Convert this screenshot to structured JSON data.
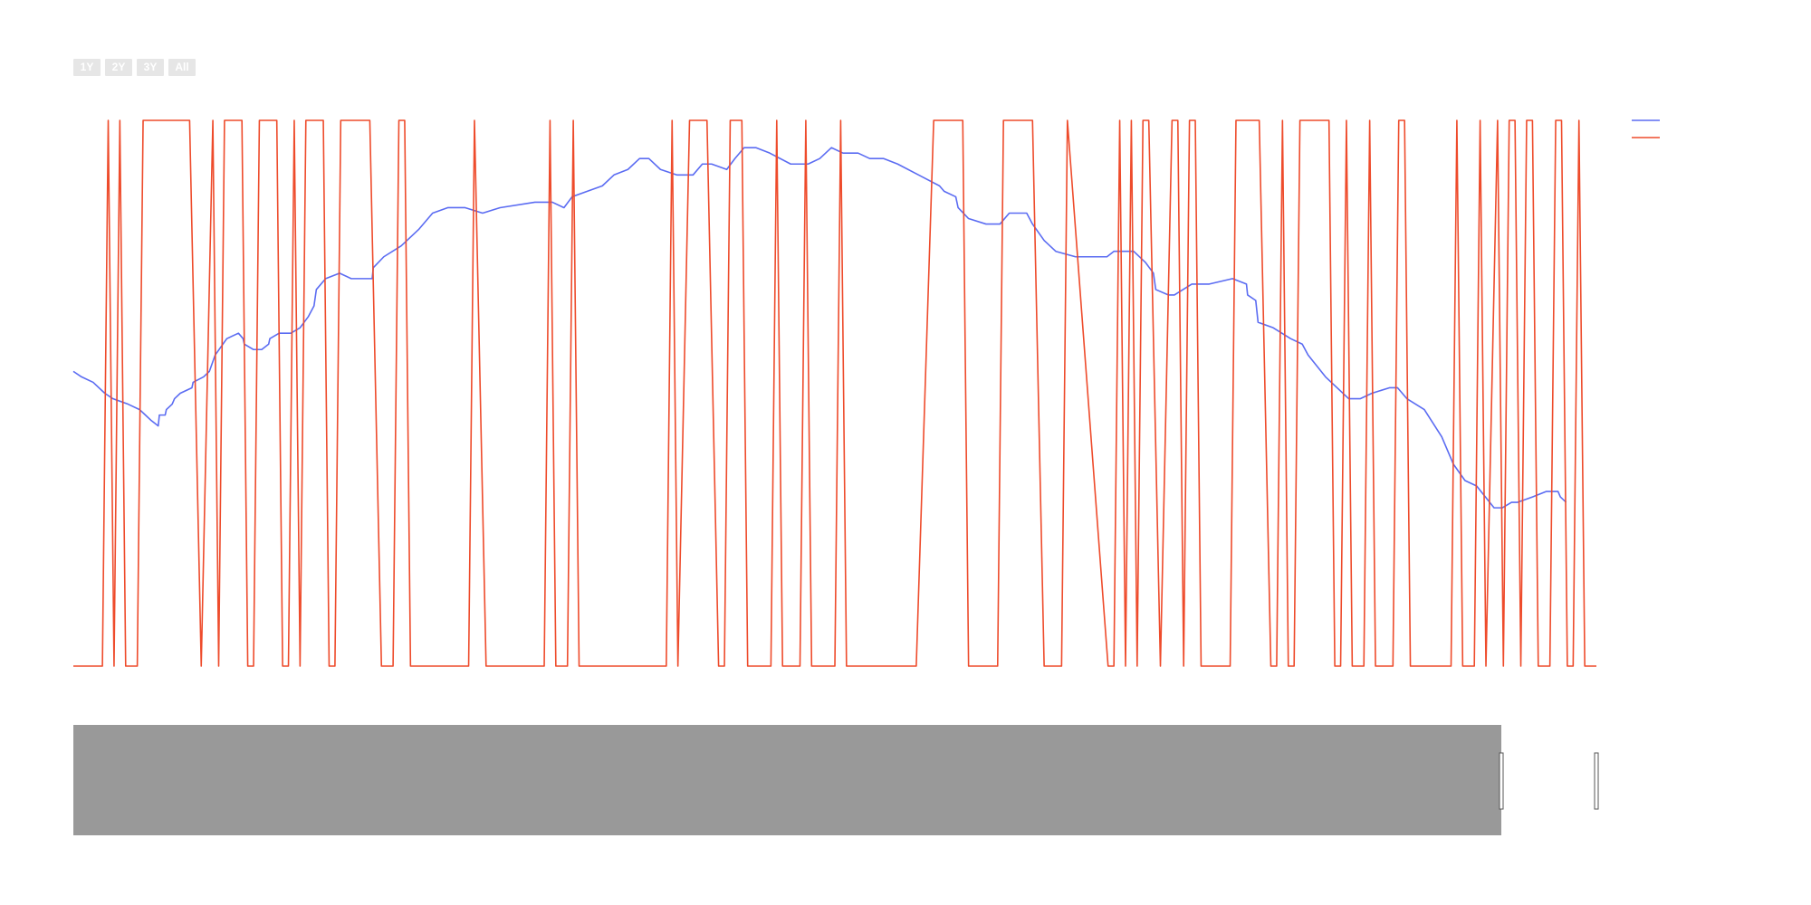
{
  "range_buttons": [
    "1Y",
    "2Y",
    "3Y",
    "All"
  ],
  "chart_data": {
    "type": "line",
    "xlim": [
      0,
      262
    ],
    "ylim": [
      0,
      1
    ],
    "series": [
      {
        "color": "#5b6cf2",
        "x": [
          0,
          1.4,
          3.4,
          5.4,
          6.8,
          9.4,
          11.4,
          12.4,
          13.4,
          14.6,
          14.8,
          15.8,
          16,
          17,
          17.4,
          18.4,
          20.4,
          20.6,
          22.4,
          23.4,
          24.4,
          26.4,
          28.4,
          29.2,
          29.4,
          31,
          32.4,
          33.6,
          33.8,
          35.4,
          37.4,
          39,
          40.4,
          41.4,
          41.8,
          43.4,
          45.8,
          47.8,
          49.8,
          51.4,
          51.6,
          53.4,
          56.4,
          59.4,
          61.8,
          64.4,
          67.4,
          70.4,
          73.4,
          79.4,
          82.4,
          84.4,
          85.8,
          88.4,
          91,
          93,
          95.4,
          97.4,
          99,
          101,
          103.8,
          106.6,
          108.2,
          109.8,
          112.4,
          113.8,
          115.4,
          117.4,
          119.8,
          123.4,
          126.4,
          128.4,
          130.4,
          132.4,
          135,
          137,
          139.4,
          141.8,
          145.4,
          149,
          149.8,
          151.8,
          152.2,
          154,
          157,
          159.4,
          161,
          164,
          165,
          167,
          169,
          172.4,
          177.8,
          179,
          182.4,
          184.4,
          185.8,
          186.2,
          188.4,
          189.4,
          192.4,
          195.4,
          199.4,
          201.8,
          202,
          203.4,
          203.8,
          206.4,
          209.4,
          211.4,
          212.4,
          215.4,
          219.4,
          221.4,
          223.4,
          226.4,
          227.8,
          229.4,
          232.4,
          235.4,
          237.4,
          239.4,
          241.4,
          244.4,
          245.8,
          247.4,
          248.4,
          251,
          253.4,
          255.4,
          255.8,
          256.8
        ],
        "values": [
          0.54,
          0.53,
          0.52,
          0.5,
          0.49,
          0.48,
          0.47,
          0.46,
          0.45,
          0.44,
          0.46,
          0.46,
          0.47,
          0.48,
          0.49,
          0.5,
          0.51,
          0.52,
          0.53,
          0.54,
          0.57,
          0.6,
          0.61,
          0.6,
          0.59,
          0.58,
          0.58,
          0.59,
          0.6,
          0.61,
          0.61,
          0.62,
          0.64,
          0.66,
          0.69,
          0.71,
          0.72,
          0.71,
          0.71,
          0.71,
          0.73,
          0.75,
          0.77,
          0.8,
          0.83,
          0.84,
          0.84,
          0.83,
          0.84,
          0.85,
          0.85,
          0.84,
          0.86,
          0.87,
          0.88,
          0.9,
          0.91,
          0.93,
          0.93,
          0.91,
          0.9,
          0.9,
          0.92,
          0.92,
          0.91,
          0.93,
          0.95,
          0.95,
          0.94,
          0.92,
          0.92,
          0.93,
          0.95,
          0.94,
          0.94,
          0.93,
          0.93,
          0.92,
          0.9,
          0.88,
          0.87,
          0.86,
          0.84,
          0.82,
          0.81,
          0.81,
          0.83,
          0.83,
          0.81,
          0.78,
          0.76,
          0.75,
          0.75,
          0.76,
          0.76,
          0.74,
          0.72,
          0.69,
          0.68,
          0.68,
          0.7,
          0.7,
          0.71,
          0.7,
          0.68,
          0.67,
          0.63,
          0.62,
          0.6,
          0.59,
          0.57,
          0.53,
          0.49,
          0.49,
          0.5,
          0.51,
          0.51,
          0.49,
          0.47,
          0.42,
          0.37,
          0.34,
          0.33,
          0.29,
          0.29,
          0.3,
          0.3,
          0.31,
          0.32,
          0.32,
          0.31,
          0.3
        ]
      },
      {
        "color": "#ee4b2b",
        "x": [
          0,
          5,
          6,
          7,
          8,
          9,
          11,
          12,
          20,
          22,
          24,
          25,
          26,
          29,
          30,
          31,
          32,
          35,
          36,
          37,
          38,
          39,
          40,
          43,
          44,
          45,
          46,
          51,
          53,
          55,
          56,
          57,
          58,
          68,
          69,
          71,
          81,
          82,
          83,
          85,
          86,
          87,
          102,
          103,
          104,
          106,
          109,
          111,
          112,
          113,
          115,
          116,
          120,
          121,
          122,
          125,
          126,
          127,
          131,
          132,
          133,
          145,
          148,
          153,
          154,
          159,
          160,
          165,
          167,
          170,
          171,
          178,
          179,
          180,
          181,
          182,
          183,
          184,
          185,
          187,
          189,
          190,
          191,
          192,
          193,
          194,
          199,
          200,
          204,
          206,
          207,
          208,
          209,
          210,
          211,
          216,
          217,
          218,
          219,
          220,
          222,
          223,
          224,
          227,
          228,
          229,
          230,
          231,
          237,
          238,
          239,
          241,
          242,
          243,
          245,
          246,
          247,
          248,
          249,
          250,
          251,
          252,
          254,
          255,
          256,
          257,
          258,
          259,
          260,
          262
        ],
        "values": [
          0,
          0,
          1,
          0,
          1,
          0,
          0,
          1,
          1,
          0,
          1,
          0,
          1,
          1,
          0,
          0,
          1,
          1,
          0,
          0,
          1,
          0,
          1,
          1,
          0,
          0,
          1,
          1,
          0,
          0,
          1,
          1,
          0,
          0,
          1,
          0,
          0,
          1,
          0,
          0,
          1,
          0,
          0,
          1,
          0,
          1,
          1,
          0,
          0,
          1,
          1,
          0,
          0,
          1,
          0,
          0,
          1,
          0,
          0,
          1,
          0,
          0,
          1,
          1,
          0,
          0,
          1,
          1,
          0,
          0,
          1,
          0,
          0,
          1,
          0,
          1,
          0,
          1,
          1,
          0,
          1,
          1,
          0,
          1,
          1,
          0,
          0,
          1,
          1,
          0,
          0,
          1,
          0,
          0,
          1,
          1,
          0,
          0,
          1,
          0,
          0,
          1,
          0,
          0,
          1,
          1,
          0,
          0,
          0,
          1,
          0,
          0,
          1,
          0,
          1,
          0,
          1,
          1,
          0,
          1,
          1,
          0,
          0,
          1,
          1,
          0,
          0,
          1,
          0,
          0
        ]
      }
    ]
  }
}
